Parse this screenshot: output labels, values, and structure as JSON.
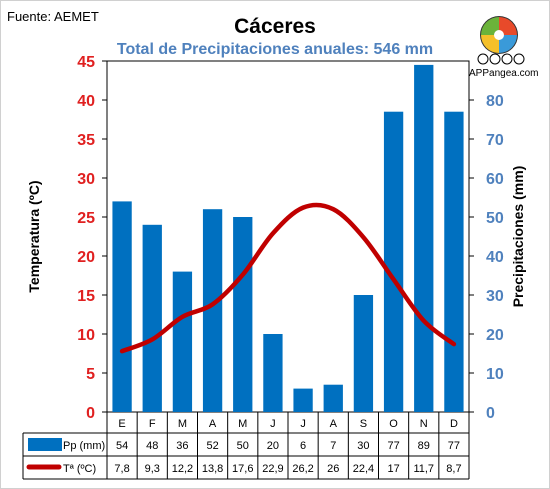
{
  "header": {
    "source": "Fuente: AEMET",
    "title": "Cáceres",
    "subtitle": "Total de Precipitaciones anuales: 546 mm",
    "brand": "APPangea.com"
  },
  "chart_data": {
    "type": "bar+line",
    "categories": [
      "E",
      "F",
      "M",
      "A",
      "M",
      "J",
      "J",
      "A",
      "S",
      "O",
      "N",
      "D"
    ],
    "series": [
      {
        "name": "Pp (mm)",
        "kind": "bar",
        "axis": "right",
        "color": "#0070c0",
        "values": [
          54,
          48,
          36,
          52,
          50,
          20,
          6,
          7,
          30,
          77,
          89,
          77
        ],
        "labels": [
          "54",
          "48",
          "36",
          "52",
          "50",
          "20",
          "6",
          "7",
          "30",
          "77",
          "89",
          "77"
        ]
      },
      {
        "name": "Tª (ºC)",
        "kind": "line",
        "axis": "left",
        "color": "#c00000",
        "values": [
          7.8,
          9.3,
          12.2,
          13.8,
          17.6,
          22.9,
          26.2,
          26,
          22.4,
          17,
          11.7,
          8.7
        ],
        "labels": [
          "7,8",
          "9,3",
          "12,2",
          "13,8",
          "17,6",
          "22,9",
          "26,2",
          "26",
          "22,4",
          "17",
          "11,7",
          "8,7"
        ]
      }
    ],
    "y_left": {
      "label": "Temperatura (ºC)",
      "min": 0,
      "max": 45,
      "ticks": [
        "0",
        "5",
        "10",
        "15",
        "20",
        "25",
        "30",
        "35",
        "40",
        "45"
      ],
      "color": "#e02020"
    },
    "y_right": {
      "label": "Precipitaciones (mm)",
      "min": 0,
      "max": 90,
      "ticks": [
        "0",
        "10",
        "20",
        "30",
        "40",
        "50",
        "60",
        "70",
        "80"
      ],
      "color": "#4f81bd"
    },
    "grid": false,
    "legend": "data-table"
  }
}
